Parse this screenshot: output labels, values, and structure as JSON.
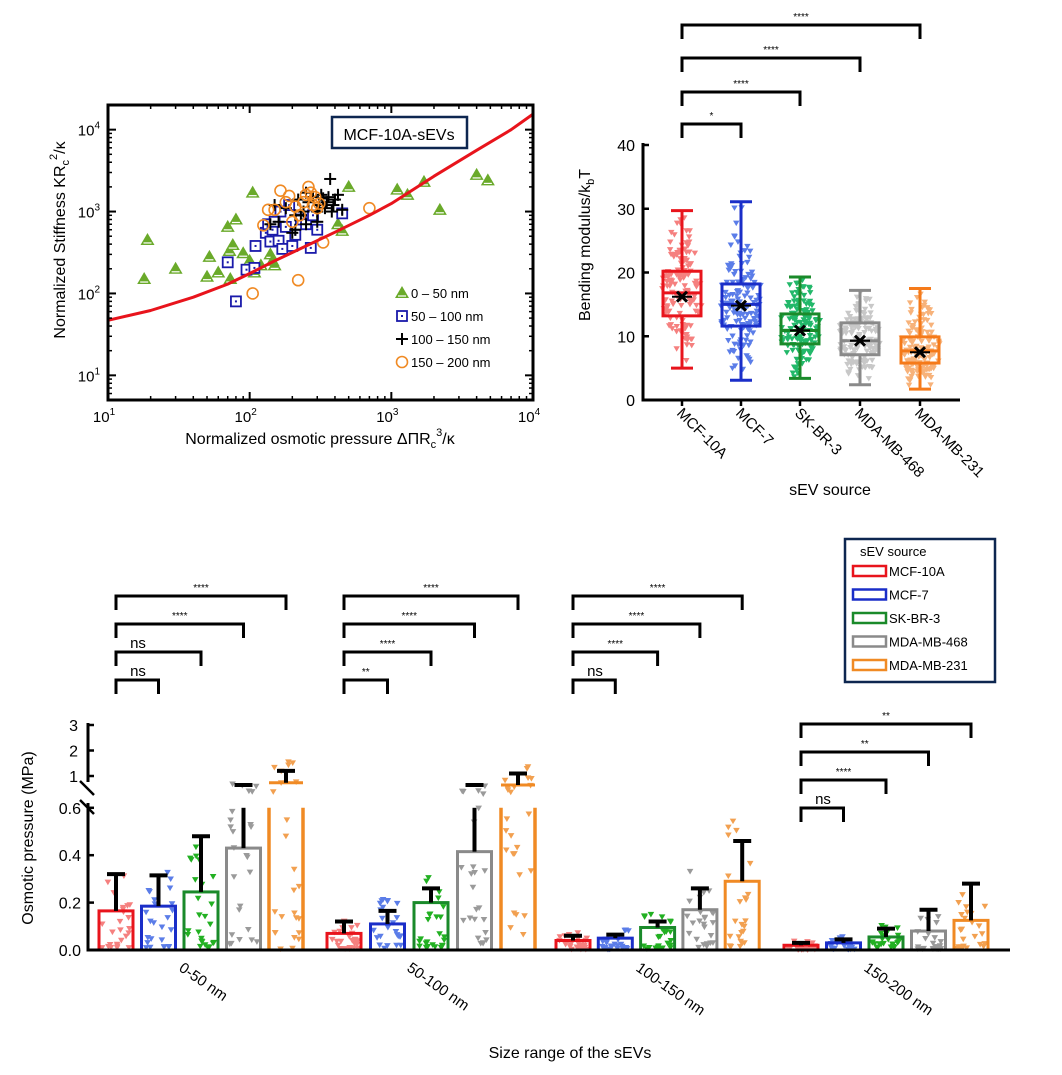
{
  "chart_data": [
    {
      "id": "scatter",
      "type": "scatter",
      "title": "",
      "annotation": "MCF-10A-sEVs",
      "xlabel": "Normalized osmotic pressure ΔΠR",
      "xlabel_sub": "c",
      "xlabel_sup": "3",
      "xlabel_tail": "/κ",
      "ylabel": "Normalized Stiffness KR",
      "ylabel_sub": "c",
      "ylabel_sup": "2",
      "ylabel_tail": "/κ",
      "xscale": "log",
      "yscale": "log",
      "xlim": [
        10,
        10000
      ],
      "ylim": [
        5,
        20000
      ],
      "xticks": [
        {
          "base": "10",
          "exp": "1",
          "v": 10
        },
        {
          "base": "10",
          "exp": "2",
          "v": 100
        },
        {
          "base": "10",
          "exp": "3",
          "v": 1000
        },
        {
          "base": "10",
          "exp": "4",
          "v": 10000
        }
      ],
      "yticks": [
        {
          "base": "10",
          "exp": "1",
          "v": 10
        },
        {
          "base": "10",
          "exp": "2",
          "v": 100
        },
        {
          "base": "10",
          "exp": "3",
          "v": 1000
        },
        {
          "base": "10",
          "exp": "4",
          "v": 10000
        }
      ],
      "legend_position": "bottom-right",
      "fit_curve": {
        "name": "model fit",
        "color": "#e8141c",
        "x": [
          10,
          20,
          40,
          70,
          100,
          150,
          250,
          400,
          700,
          1000,
          2000,
          4000,
          7000,
          10000
        ],
        "y": [
          47,
          62,
          90,
          130,
          175,
          250,
          380,
          560,
          900,
          1250,
          2700,
          5600,
          10000,
          15500
        ]
      },
      "series": [
        {
          "name": "0 – 50 nm",
          "marker": "triangle",
          "color": "#6aaa2a",
          "x": [
            18,
            19,
            30,
            50,
            52,
            60,
            70,
            72,
            73,
            76,
            80,
            90,
            100,
            105,
            108,
            120,
            140,
            145,
            150,
            420,
            450,
            500,
            1100,
            1300,
            1700,
            2200,
            4000,
            4800
          ],
          "y": [
            150,
            450,
            200,
            160,
            280,
            180,
            650,
            330,
            150,
            390,
            800,
            310,
            250,
            1700,
            180,
            220,
            300,
            250,
            220,
            700,
            580,
            2000,
            1850,
            1600,
            2300,
            1050,
            2800,
            2400
          ]
        },
        {
          "name": "50 – 100 nm",
          "marker": "square-dot",
          "color": "#1a1aaa",
          "x": [
            70,
            80,
            95,
            108,
            110,
            130,
            135,
            140,
            145,
            150,
            160,
            165,
            170,
            180,
            190,
            200,
            210,
            230,
            250,
            270,
            280,
            300,
            450
          ],
          "y": [
            240,
            80,
            195,
            205,
            380,
            550,
            700,
            430,
            600,
            750,
            440,
            1000,
            350,
            650,
            1200,
            380,
            520,
            800,
            700,
            360,
            900,
            600,
            950
          ]
        },
        {
          "name": "100 – 150 nm",
          "marker": "plus",
          "color": "#000000",
          "x": [
            140,
            150,
            160,
            180,
            200,
            210,
            220,
            240,
            250,
            260,
            280,
            300,
            310,
            320,
            330,
            340,
            350,
            360,
            370,
            380,
            390,
            400,
            420,
            450,
            300,
            250,
            230,
            210
          ],
          "y": [
            700,
            1200,
            750,
            1100,
            550,
            900,
            1400,
            1000,
            1700,
            1300,
            1500,
            1000,
            1200,
            1600,
            1450,
            1100,
            1300,
            1500,
            2500,
            1000,
            1200,
            1400,
            1600,
            1050,
            750,
            700,
            900,
            600
          ]
        },
        {
          "name": "150 – 200 nm",
          "marker": "circle",
          "color": "#f08a24",
          "x": [
            105,
            125,
            135,
            150,
            165,
            180,
            190,
            200,
            210,
            220,
            225,
            240,
            250,
            260,
            270,
            280,
            290,
            300,
            310,
            330,
            700
          ],
          "y": [
            100,
            680,
            1050,
            1050,
            1800,
            1300,
            1550,
            750,
            1150,
            145,
            900,
            1300,
            1600,
            2000,
            1700,
            1200,
            1500,
            1100,
            1250,
            420,
            1100
          ]
        }
      ]
    },
    {
      "id": "boxplot",
      "type": "box",
      "xlabel": "sEV source",
      "ylabel": "Bending modulus/k",
      "ylabel_sub": "b",
      "ylabel_tail": "T",
      "ylim": [
        0,
        40
      ],
      "yticks": [
        0,
        10,
        20,
        30,
        40
      ],
      "categories": [
        "MCF-10A",
        "MCF-7",
        "SK-BR-3",
        "MDA-MB-468",
        "MDA-MB-231"
      ],
      "series": [
        {
          "name": "MCF-10A",
          "color": "#e8141c",
          "dots": "#f5807f",
          "min": 5.0,
          "q1": 13.2,
          "median": 16.8,
          "q3": 20.2,
          "max": 29.7,
          "mean": 16.2
        },
        {
          "name": "MCF-7",
          "color": "#1a2ec8",
          "dots": "#5b7de8",
          "min": 3.1,
          "q1": 11.6,
          "median": 15.0,
          "q3": 18.2,
          "max": 31.1,
          "mean": 14.8
        },
        {
          "name": "SK-BR-3",
          "color": "#1a8a2a",
          "dots": "#22b86a",
          "min": 3.4,
          "q1": 8.8,
          "median": 10.9,
          "q3": 13.5,
          "max": 19.3,
          "mean": 10.9
        },
        {
          "name": "MDA-MB-468",
          "color": "#8a8a8a",
          "dots": "#c8c8c8",
          "min": 2.4,
          "q1": 7.1,
          "median": 9.3,
          "q3": 12.1,
          "max": 17.2,
          "mean": 9.3
        },
        {
          "name": "MDA-MB-231",
          "color": "#f57a1a",
          "dots": "#f7b27a",
          "min": 1.7,
          "q1": 5.8,
          "median": 7.7,
          "q3": 9.9,
          "max": 17.5,
          "mean": 7.5
        }
      ],
      "significance": [
        {
          "from": "MCF-10A",
          "to": "MCF-7",
          "label": "*"
        },
        {
          "from": "MCF-10A",
          "to": "SK-BR-3",
          "label": "****"
        },
        {
          "from": "MCF-10A",
          "to": "MDA-MB-468",
          "label": "****"
        },
        {
          "from": "MCF-10A",
          "to": "MDA-MB-231",
          "label": "****"
        }
      ]
    },
    {
      "id": "bars",
      "type": "bar",
      "xlabel": "Size range of the sEVs",
      "ylabel": "Osmotic pressure (MPa)",
      "axis_break": [
        0.6,
        1
      ],
      "yticks_lower": [
        "0.0",
        "0.2",
        "0.4",
        "0.6"
      ],
      "yticks_upper": [
        "1",
        "2",
        "3"
      ],
      "categories": [
        "0-50 nm",
        "50-100 nm",
        "100-150 nm",
        "150-200 nm"
      ],
      "legend": {
        "title": "sEV source",
        "position": "top-right"
      },
      "series": [
        {
          "name": "MCF-10A",
          "color": "#e8141c",
          "dots": "#f5807f",
          "values": [
            0.165,
            0.07,
            0.04,
            0.02
          ],
          "err": [
            0.32,
            0.12,
            0.06,
            0.03
          ]
        },
        {
          "name": "MCF-7",
          "color": "#1a2ec8",
          "dots": "#5b7de8",
          "values": [
            0.185,
            0.11,
            0.05,
            0.03
          ],
          "err": [
            0.315,
            0.165,
            0.065,
            0.045
          ]
        },
        {
          "name": "SK-BR-3",
          "color": "#1a8a2a",
          "dots": "#22b022",
          "values": [
            0.245,
            0.2,
            0.095,
            0.055
          ],
          "err": [
            0.48,
            0.26,
            0.12,
            0.09
          ]
        },
        {
          "name": "MDA-MB-468",
          "color": "#8a8a8a",
          "dots": "#9a9a9a",
          "values": [
            0.43,
            0.415,
            0.17,
            0.08
          ],
          "err": [
            0.8,
            0.8,
            0.26,
            0.17
          ]
        },
        {
          "name": "MDA-MB-231",
          "color": "#f08a24",
          "dots": "#f2a050",
          "values": [
            0.85,
            0.8,
            0.29,
            0.125
          ],
          "err": [
            1.2,
            1.1,
            0.46,
            0.28
          ]
        }
      ],
      "significance": [
        {
          "group": "0-50 nm",
          "labels": [
            "ns",
            "ns",
            "****",
            "****"
          ]
        },
        {
          "group": "50-100 nm",
          "labels": [
            "**",
            "****",
            "****",
            "****"
          ]
        },
        {
          "group": "100-150 nm",
          "labels": [
            "ns",
            "****",
            "****",
            "****"
          ]
        },
        {
          "group": "150-200 nm",
          "labels": [
            "ns",
            "****",
            "**",
            "**"
          ]
        }
      ]
    }
  ]
}
